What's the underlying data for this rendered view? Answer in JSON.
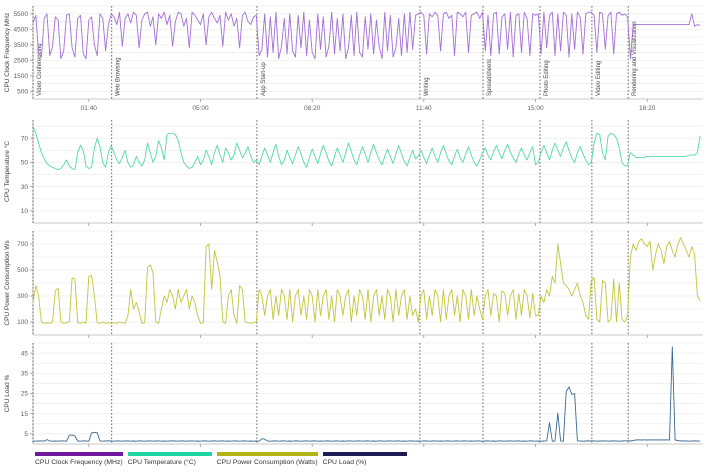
{
  "legend": {
    "items": [
      {
        "label": "CPU Clock Frequency (MHz)",
        "color": "#71169e"
      },
      {
        "label": "CPU Temperature (°C)",
        "color": "#1dd6a3"
      },
      {
        "label": "CPU Power Consumption (Watts)",
        "color": "#b3b516"
      },
      {
        "label": "CPU Load (%)",
        "color": "#1c1c52"
      }
    ]
  },
  "chart_data": {
    "type": "line",
    "x_unit": "elapsed time (mm:ss)",
    "x_range_seconds": [
      0,
      1200
    ],
    "sample_interval_seconds": 5,
    "grid": true,
    "legend_position": "bottom",
    "xticks": [
      {
        "t": 100,
        "label": "01:40"
      },
      {
        "t": 300,
        "label": "05:00"
      },
      {
        "t": 500,
        "label": "08:20"
      },
      {
        "t": 700,
        "label": "11:40"
      },
      {
        "t": 900,
        "label": "15:00"
      },
      {
        "t": 1100,
        "label": "18:20"
      }
    ],
    "segments": [
      {
        "label": "Video Conferencing",
        "t": 0
      },
      {
        "label": "Web Browsing",
        "t": 141
      },
      {
        "label": "App Start-up",
        "t": 401
      },
      {
        "label": "Writing",
        "t": 693
      },
      {
        "label": "Spreadsheets",
        "t": 806
      },
      {
        "label": "Photo Editing",
        "t": 908
      },
      {
        "label": "Video Editing",
        "t": 1001
      },
      {
        "label": "Rendering and Visualization",
        "t": 1066
      }
    ],
    "charts": [
      {
        "name": "cpu-clock-frequency",
        "ylabel": "CPU Clock Frequency MHz",
        "color": "#a46fd6",
        "ymax": 6000,
        "ylim": [
          0,
          6000
        ],
        "grid_step": 500,
        "yticks": [
          500,
          1500,
          2500,
          3500,
          4500,
          5500
        ],
        "show_x_labels": true,
        "show_segment_labels": true,
        "values": [
          4900,
          5400,
          3000,
          2700,
          5200,
          5500,
          2800,
          3400,
          5300,
          5100,
          2600,
          3100,
          5400,
          5500,
          3300,
          2700,
          5200,
          5400,
          2900,
          2600,
          5100,
          5300,
          3500,
          2800,
          5500,
          5200,
          3100,
          4800,
          5500,
          5300,
          4800,
          5600,
          3400,
          5200,
          5500,
          4900,
          5600,
          5400,
          3300,
          5100,
          5500,
          5600,
          4700,
          5300,
          3500,
          5500,
          5200,
          5600,
          4800,
          5400,
          3400,
          5000,
          5600,
          5500,
          4700,
          5200,
          3300,
          5600,
          5400,
          5100,
          4800,
          5500,
          3500,
          5300,
          5600,
          5200,
          4900,
          5400,
          3400,
          5600,
          5100,
          5500,
          4700,
          5200,
          3300,
          5400,
          5600,
          5000,
          4800,
          5300,
          5400,
          2800,
          3200,
          5500,
          2700,
          5300,
          3000,
          5600,
          2600,
          3400,
          5200,
          2900,
          5500,
          3100,
          2700,
          5400,
          3300,
          5600,
          2800,
          5100,
          3000,
          2600,
          5500,
          3200,
          5300,
          2700,
          3400,
          5600,
          2900,
          5200,
          3100,
          5500,
          2600,
          3300,
          5400,
          2800,
          5600,
          3000,
          2700,
          5300,
          3200,
          5500,
          2900,
          5100,
          3400,
          2600,
          5600,
          3100,
          5400,
          2700,
          3300,
          5200,
          2800,
          5500,
          3000,
          5600,
          3200,
          5400,
          5500,
          5600,
          5400,
          2900,
          5500,
          5300,
          5600,
          5400,
          3100,
          5500,
          5600,
          5200,
          5400,
          2800,
          5600,
          5500,
          5300,
          5600,
          3000,
          5400,
          5500,
          5600,
          5200,
          5600,
          3100,
          5400,
          2800,
          5500,
          5600,
          2900,
          5300,
          5500,
          3200,
          5600,
          2700,
          5400,
          5500,
          3000,
          5600,
          5200,
          2800,
          5500,
          5400,
          5500,
          2900,
          5600,
          3300,
          5400,
          5600,
          2800,
          5500,
          3100,
          5600,
          5400,
          2700,
          5500,
          3200,
          5600,
          5300,
          2900,
          5500,
          5600,
          5600,
          5400,
          3000,
          5600,
          5500,
          3200,
          5400,
          5600,
          2900,
          5500,
          5600,
          5400,
          5500,
          5300,
          2600,
          4800,
          4800,
          4800,
          4800,
          4800,
          4800,
          4800,
          4800,
          4800,
          4800,
          4800,
          4800,
          4800,
          4800,
          4800,
          4800,
          4800,
          4800,
          4800,
          4800,
          4800,
          5500,
          4700,
          4800,
          4750
        ]
      },
      {
        "name": "cpu-temperature",
        "ylabel": "CPU Temperature °C",
        "color": "#52d8b0",
        "ymax": 85,
        "ylim": [
          0,
          85
        ],
        "grid_step": 10,
        "yticks": [
          10,
          30,
          50,
          70
        ],
        "show_x_labels": false,
        "show_segment_labels": false,
        "values": [
          80,
          74,
          66,
          58,
          53,
          49,
          47,
          46,
          45,
          44,
          45,
          48,
          52,
          47,
          45,
          44,
          58,
          64,
          60,
          47,
          45,
          46,
          62,
          70,
          63,
          50,
          46,
          58,
          64,
          58,
          52,
          49,
          54,
          60,
          50,
          46,
          48,
          55,
          50,
          47,
          52,
          66,
          58,
          50,
          55,
          68,
          62,
          52,
          73,
          74,
          74,
          73,
          68,
          58,
          50,
          47,
          45,
          46,
          50,
          55,
          48,
          52,
          60,
          55,
          48,
          58,
          64,
          56,
          50,
          62,
          58,
          52,
          56,
          66,
          60,
          54,
          58,
          63,
          55,
          50,
          52,
          48,
          55,
          62,
          56,
          50,
          58,
          65,
          55,
          48,
          52,
          60,
          54,
          49,
          56,
          63,
          57,
          50,
          46,
          54,
          61,
          55,
          49,
          57,
          64,
          58,
          51,
          47,
          55,
          62,
          56,
          50,
          58,
          66,
          59,
          52,
          48,
          56,
          63,
          57,
          50,
          58,
          65,
          58,
          52,
          48,
          55,
          61,
          55,
          49,
          57,
          64,
          57,
          51,
          47,
          54,
          60,
          53,
          55,
          60,
          54,
          49,
          56,
          62,
          55,
          50,
          58,
          64,
          57,
          51,
          48,
          55,
          61,
          54,
          50,
          57,
          63,
          56,
          50,
          47,
          52,
          58,
          62,
          56,
          52,
          59,
          64,
          58,
          53,
          60,
          65,
          58,
          54,
          50,
          57,
          62,
          56,
          52,
          58,
          63,
          48,
          50,
          58,
          64,
          58,
          52,
          60,
          66,
          60,
          55,
          62,
          67,
          60,
          54,
          50,
          58,
          63,
          57,
          52,
          48,
          50,
          66,
          74,
          73,
          58,
          52,
          72,
          74,
          73,
          70,
          62,
          50,
          47,
          48,
          58,
          56,
          54,
          54,
          54,
          54,
          55,
          55,
          55,
          55,
          55,
          55,
          55,
          55,
          55,
          55,
          55,
          55,
          55,
          55,
          55,
          56,
          56,
          56,
          58,
          72
        ]
      },
      {
        "name": "cpu-power-consumption",
        "ylabel": "CPU Power Consumption Ws",
        "color": "#c2c53b",
        "ymax": 800,
        "ylim": [
          0,
          800
        ],
        "grid_step": 100,
        "yticks": [
          100,
          300,
          500,
          700
        ],
        "show_x_labels": false,
        "show_segment_labels": false,
        "values": [
          250,
          380,
          300,
          100,
          90,
          95,
          90,
          100,
          340,
          360,
          100,
          90,
          95,
          100,
          440,
          430,
          95,
          90,
          100,
          90,
          450,
          460,
          300,
          95,
          90,
          100,
          90,
          95,
          90,
          95,
          90,
          100,
          95,
          90,
          150,
          350,
          200,
          250,
          180,
          90,
          95,
          520,
          540,
          480,
          100,
          90,
          200,
          300,
          250,
          350,
          300,
          200,
          350,
          250,
          300,
          350,
          200,
          300,
          250,
          150,
          90,
          95,
          680,
          700,
          350,
          650,
          560,
          450,
          100,
          90,
          300,
          350,
          150,
          90,
          380,
          350,
          100,
          95,
          90,
          95,
          100,
          350,
          300,
          150,
          300,
          350,
          120,
          300,
          150,
          350,
          300,
          120,
          350,
          100,
          300,
          350,
          150,
          300,
          120,
          350,
          300,
          100,
          350,
          150,
          300,
          350,
          120,
          300,
          100,
          350,
          300,
          150,
          300,
          350,
          100,
          300,
          150,
          350,
          300,
          120,
          350,
          100,
          300,
          350,
          150,
          300,
          120,
          350,
          300,
          100,
          350,
          150,
          300,
          350,
          120,
          300,
          150,
          200,
          100,
          300,
          350,
          120,
          300,
          150,
          350,
          300,
          100,
          350,
          120,
          300,
          350,
          150,
          300,
          100,
          350,
          300,
          120,
          350,
          150,
          300,
          200,
          120,
          300,
          350,
          150,
          320,
          300,
          100,
          340,
          320,
          150,
          300,
          350,
          120,
          320,
          150,
          350,
          300,
          130,
          320,
          150,
          150,
          300,
          250,
          350,
          300,
          450,
          400,
          700,
          550,
          400,
          380,
          350,
          300,
          350,
          400,
          300,
          250,
          150,
          120,
          420,
          440,
          120,
          100,
          420,
          400,
          100,
          120,
          430,
          100,
          400,
          120,
          100,
          150,
          600,
          700,
          650,
          720,
          740,
          700,
          680,
          720,
          500,
          620,
          700,
          650,
          550,
          680,
          720,
          650,
          600,
          700,
          750,
          700,
          650,
          600,
          680,
          620,
          300,
          260
        ]
      },
      {
        "name": "cpu-load",
        "ylabel": "CPU Load %",
        "color": "#3a6a92",
        "ymax": 50,
        "ylim": [
          0,
          50
        ],
        "grid_step": 5,
        "yticks": [
          5,
          15,
          25,
          35,
          45
        ],
        "show_x_labels": false,
        "show_segment_labels": false,
        "values": [
          1.5,
          1.4,
          1.5,
          1.6,
          1.4,
          2.2,
          1.5,
          1.4,
          1.5,
          1.4,
          1.6,
          1.5,
          1.4,
          4.3,
          4.5,
          4.0,
          1.5,
          1.4,
          1.6,
          1.5,
          1.4,
          5.5,
          5.8,
          5.6,
          1.5,
          1.4,
          1.5,
          1.6,
          1.5,
          1.4,
          1.6,
          1.5,
          1.4,
          1.5,
          1.6,
          1.4,
          1.5,
          1.4,
          1.6,
          1.5,
          1.4,
          1.5,
          1.6,
          1.4,
          1.5,
          1.6,
          1.4,
          1.5,
          1.4,
          1.5,
          1.6,
          1.5,
          1.4,
          1.6,
          1.5,
          1.4,
          1.5,
          1.6,
          1.4,
          1.5,
          1.4,
          1.6,
          1.5,
          1.4,
          1.5,
          1.6,
          1.4,
          1.5,
          1.6,
          1.4,
          1.5,
          1.4,
          1.6,
          1.5,
          1.4,
          1.5,
          1.6,
          1.4,
          1.5,
          1.4,
          1.5,
          1.4,
          2.6,
          2.4,
          1.5,
          1.4,
          1.5,
          1.6,
          1.4,
          1.5,
          1.6,
          1.4,
          1.5,
          1.4,
          1.6,
          1.5,
          1.4,
          1.5,
          1.6,
          1.4,
          1.5,
          1.6,
          1.4,
          1.5,
          1.4,
          1.6,
          1.5,
          1.4,
          1.5,
          1.6,
          1.4,
          1.5,
          1.4,
          1.6,
          1.5,
          1.4,
          1.5,
          1.6,
          1.4,
          1.5,
          1.6,
          1.4,
          1.5,
          1.4,
          1.6,
          1.5,
          1.4,
          1.5,
          1.6,
          1.4,
          1.5,
          1.6,
          1.4,
          1.5,
          1.4,
          1.6,
          1.5,
          1.4,
          1.5,
          1.4,
          1.6,
          1.5,
          1.4,
          1.5,
          1.6,
          1.4,
          1.5,
          1.4,
          1.6,
          1.5,
          1.4,
          1.5,
          1.6,
          1.4,
          1.5,
          1.6,
          1.4,
          1.5,
          1.4,
          1.6,
          1.5,
          1.4,
          1.5,
          1.6,
          1.4,
          1.5,
          1.4,
          1.6,
          1.5,
          1.4,
          1.5,
          1.6,
          1.4,
          1.5,
          1.6,
          1.4,
          1.5,
          1.4,
          1.6,
          1.5,
          1.4,
          1.5,
          1.4,
          1.5,
          1.6,
          10.5,
          1.4,
          1.5,
          15.3,
          1.5,
          1.4,
          26.0,
          28.2,
          24.5,
          25.0,
          1.6,
          1.5,
          1.4,
          1.5,
          1.6,
          1.5,
          1.6,
          1.4,
          1.5,
          1.5,
          1.6,
          1.4,
          1.5,
          1.6,
          1.5,
          1.4,
          1.5,
          1.6,
          1.6,
          1.5,
          1.8,
          2.0,
          2.1,
          2.0,
          2.1,
          2.0,
          2.1,
          2.0,
          2.1,
          2.0,
          2.1,
          2.0,
          2.1,
          2.0,
          48.0,
          2.0,
          1.7,
          1.5,
          1.6,
          1.5,
          1.4,
          1.5,
          1.6,
          1.5,
          1.4
        ]
      }
    ]
  }
}
